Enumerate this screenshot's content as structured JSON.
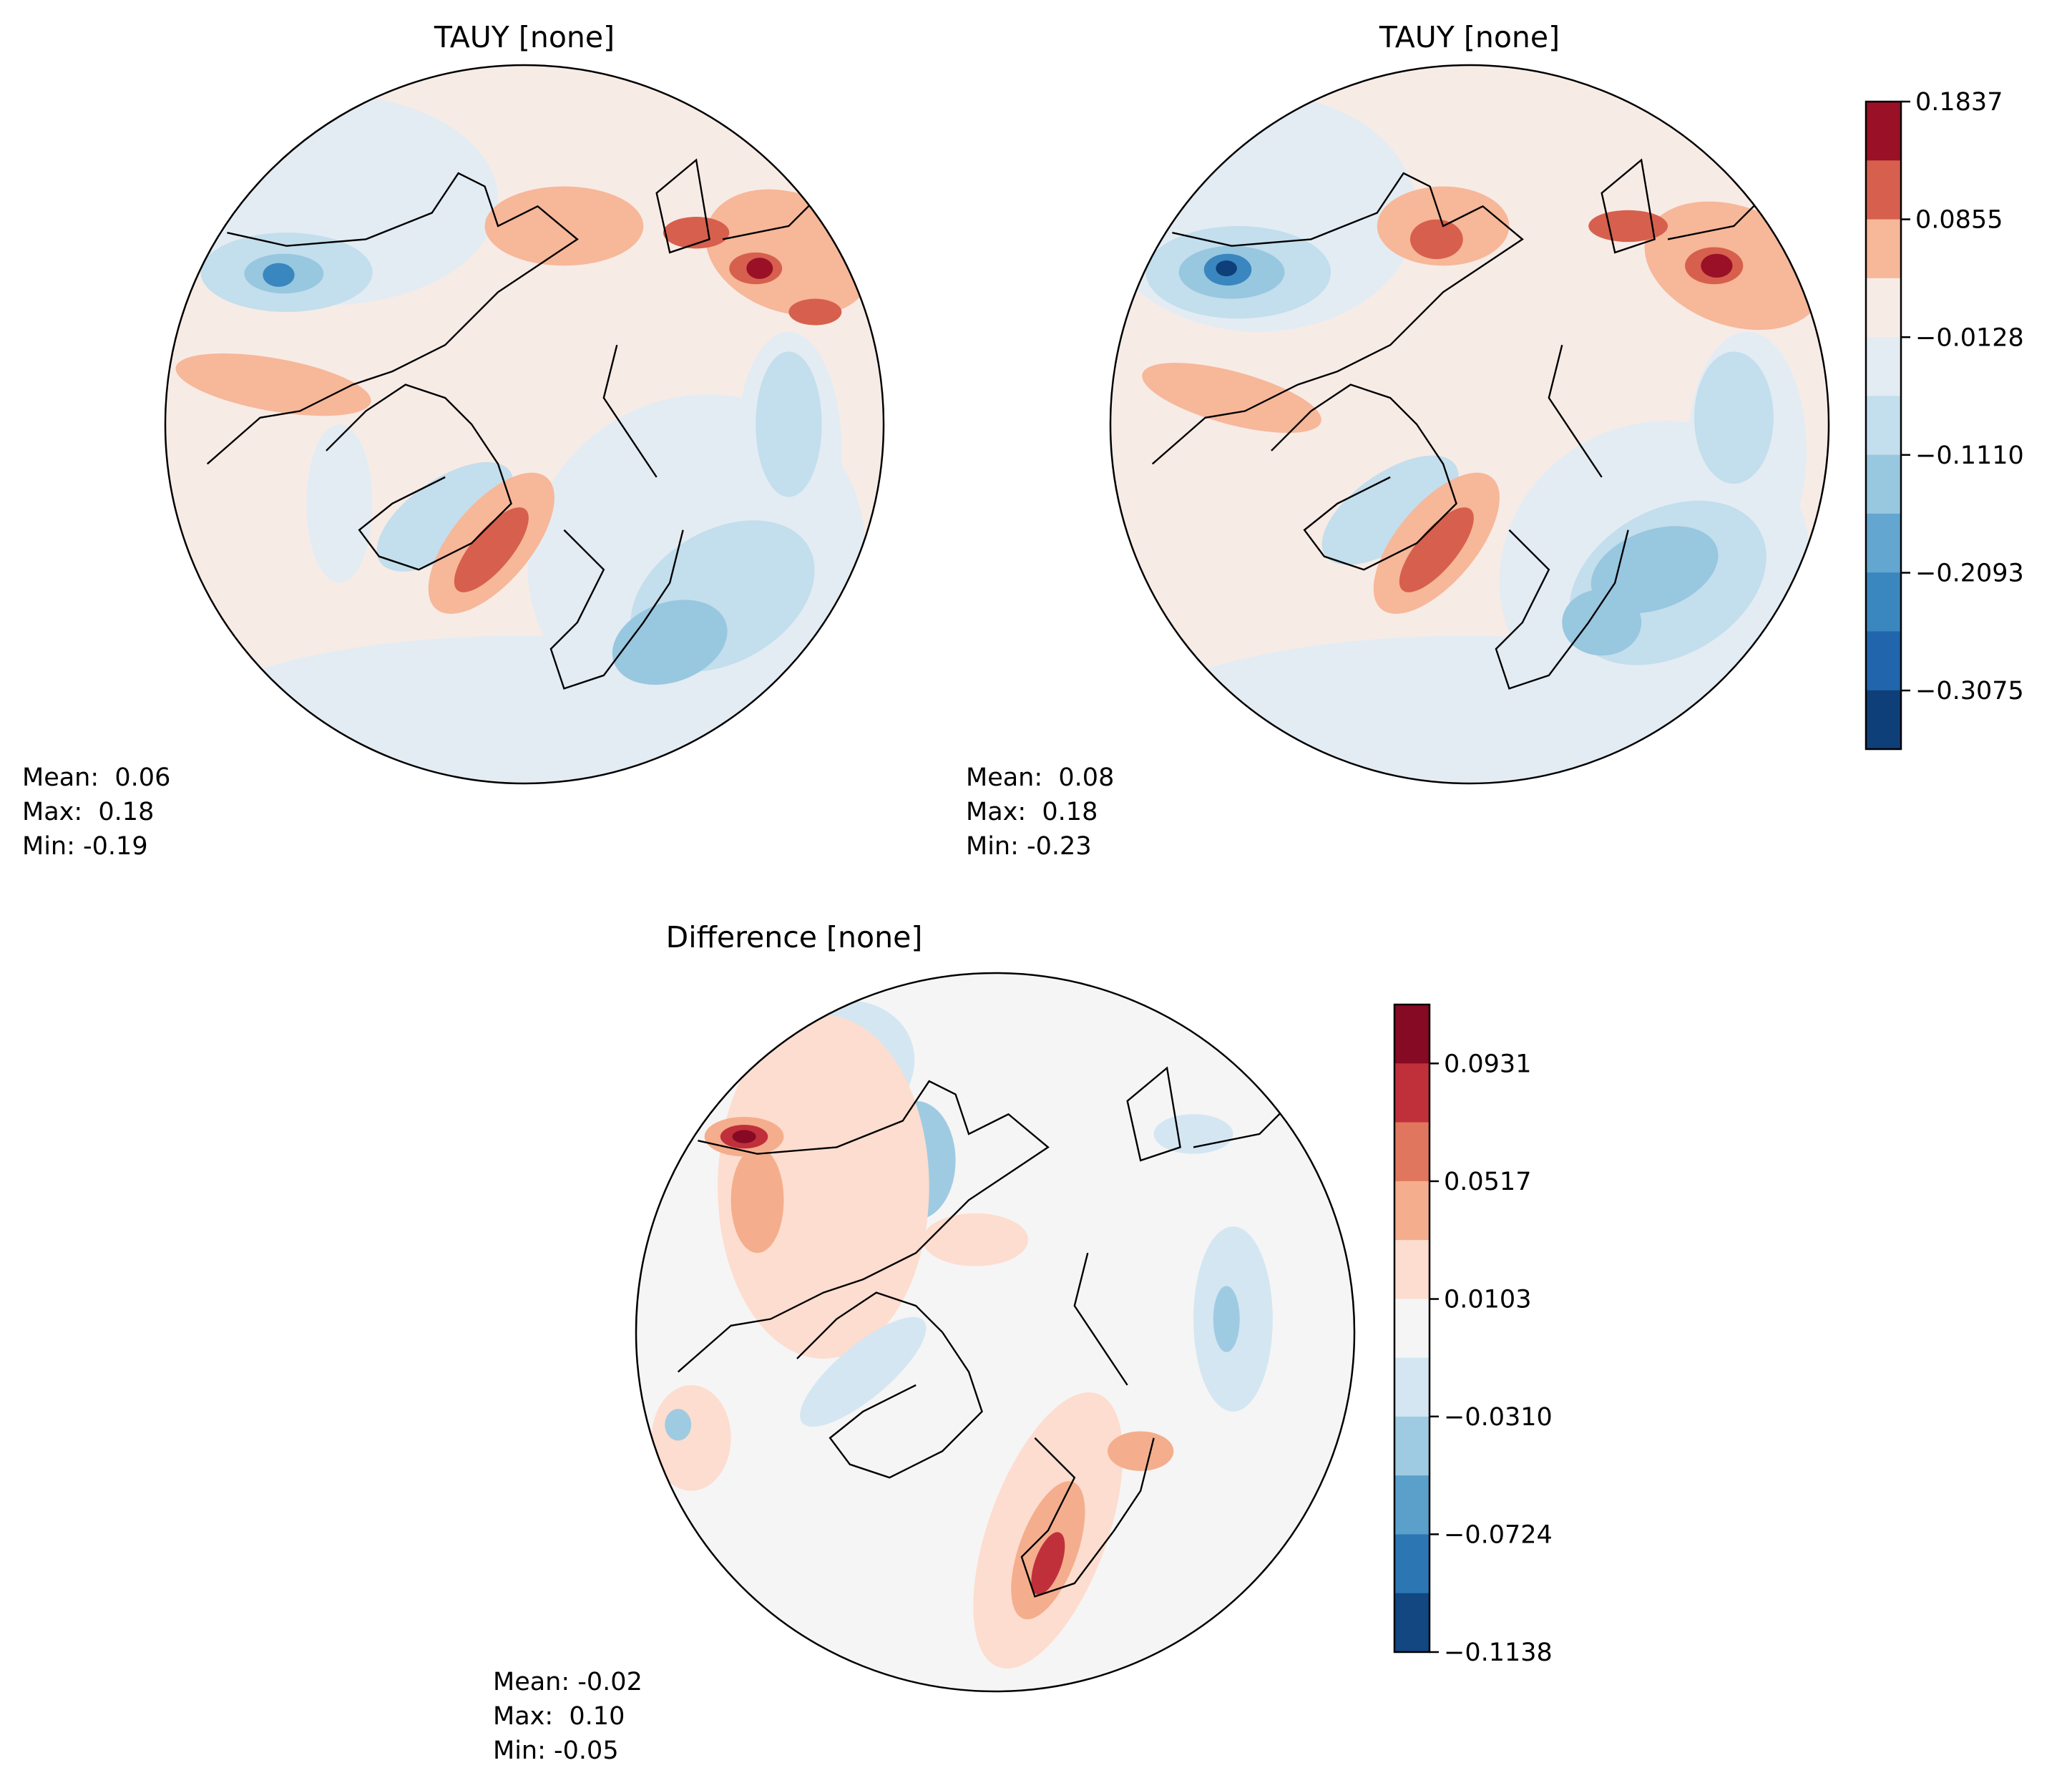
{
  "chart_data": [
    {
      "type": "contour",
      "projection": "north-polar-stereographic",
      "title": "TAUY [none]",
      "stats": {
        "mean": "Mean:  0.06",
        "max": "Max:  0.18",
        "min": "Min: -0.19"
      },
      "colorbar": "shared-1"
    },
    {
      "type": "contour",
      "projection": "north-polar-stereographic",
      "title": "TAUY [none]",
      "stats": {
        "mean": "Mean:  0.08",
        "max": "Max:  0.18",
        "min": "Min: -0.23"
      },
      "colorbar": "shared-1"
    },
    {
      "type": "contour",
      "projection": "north-polar-stereographic",
      "title": "Difference [none]",
      "stats": {
        "mean": "Mean: -0.02",
        "max": "Max:  0.10",
        "min": "Min: -0.05"
      },
      "colorbar": "diff"
    }
  ],
  "colorbars": {
    "shared-1": {
      "range": [
        -0.3564,
        0.1837
      ],
      "ticks": [
        "0.1837",
        "0.0855",
        "−0.0128",
        "−0.1110",
        "−0.2093",
        "−0.3075"
      ],
      "tick_values": [
        0.1837,
        0.0855,
        -0.0128,
        -0.111,
        -0.2093,
        -0.3075
      ],
      "colors": [
        "#9a1027",
        "#d6604d",
        "#f7b799",
        "#f7ebe6",
        "#e3ecf3",
        "#c3deec",
        "#98c7e0",
        "#63a6d0",
        "#3a86bf",
        "#2166ac",
        "#0e3f78"
      ]
    },
    "diff": {
      "range": [
        -0.1138,
        0.1138
      ],
      "ticks": [
        "0.0931",
        "0.0517",
        "0.0103",
        "−0.0310",
        "−0.0724",
        "−0.1138"
      ],
      "tick_values": [
        0.0931,
        0.0517,
        0.0103,
        -0.031,
        -0.0724,
        -0.1138
      ],
      "colors": [
        "#870a24",
        "#c0303a",
        "#e0765e",
        "#f4ae8d",
        "#fdddcf",
        "#f5f5f5",
        "#d4e6f1",
        "#9fcbe2",
        "#5aa0cb",
        "#2c76b4",
        "#124781"
      ]
    }
  }
}
